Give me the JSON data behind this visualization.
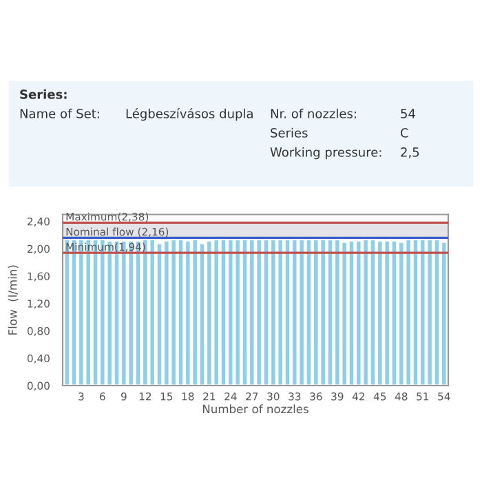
{
  "chart_data": {
    "type": "bar",
    "xlabel": "Number of nozzles",
    "ylabel": "Flow  (l/min)",
    "categories": [
      null,
      null,
      "3",
      null,
      null,
      "6",
      null,
      null,
      "9",
      null,
      null,
      "12",
      null,
      null,
      "15",
      null,
      null,
      "18",
      null,
      null,
      "21",
      null,
      null,
      "24",
      null,
      null,
      "27",
      null,
      null,
      "30",
      null,
      null,
      "33",
      null,
      null,
      "36",
      null,
      null,
      "39",
      null,
      null,
      "42",
      null,
      null,
      "45",
      null,
      null,
      "48",
      null,
      null,
      "51",
      null,
      null,
      "54"
    ],
    "values": [
      2.14,
      2.14,
      2.14,
      2.14,
      2.14,
      2.14,
      2.12,
      2.12,
      2.12,
      2.12,
      2.12,
      2.14,
      2.14,
      2.08,
      2.12,
      2.14,
      2.14,
      2.12,
      2.14,
      2.08,
      2.12,
      2.14,
      2.14,
      2.14,
      2.14,
      2.14,
      2.14,
      2.14,
      2.14,
      2.14,
      2.14,
      2.14,
      2.14,
      2.14,
      2.14,
      2.14,
      2.14,
      2.14,
      2.14,
      2.1,
      2.12,
      2.12,
      2.14,
      2.14,
      2.12,
      2.12,
      2.12,
      2.1,
      2.14,
      2.14,
      2.14,
      2.14,
      2.14,
      2.1
    ],
    "color": "#8ecfe8",
    "ylim": [
      0,
      2.5
    ],
    "yticks": [
      {
        "value": 0,
        "label": "0,00"
      },
      {
        "value": 0.4,
        "label": "0,40"
      },
      {
        "value": 0.8,
        "label": "0,80"
      },
      {
        "value": 1.2,
        "label": "1,20"
      },
      {
        "value": 1.6,
        "label": "1,60"
      },
      {
        "value": 2.0,
        "label": "2,00"
      },
      {
        "value": 2.4,
        "label": "2,40"
      }
    ],
    "ref_lines": [
      {
        "axis": "y",
        "value": 2.38,
        "label": "Maximum(2,38)",
        "color": "#c0504d"
      },
      {
        "axis": "y",
        "value": 2.16,
        "label": "Nominal flow (2,16)",
        "color": "#3a5fcd"
      },
      {
        "axis": "y",
        "value": 1.94,
        "label": "Minimum(1,94)",
        "color": "#c0504d"
      }
    ],
    "bands": [
      {
        "axis": "y",
        "from": 2.16,
        "to": 2.38,
        "color": "#e4e4e8"
      }
    ],
    "annotations": [
      "Series:",
      "Name of Set:",
      "Légbeszívásos dupla",
      "Nr. of nozzles:",
      "54",
      "Series",
      "C",
      "Working pressure:",
      "2,5"
    ],
    "grid": false,
    "legend": false
  }
}
